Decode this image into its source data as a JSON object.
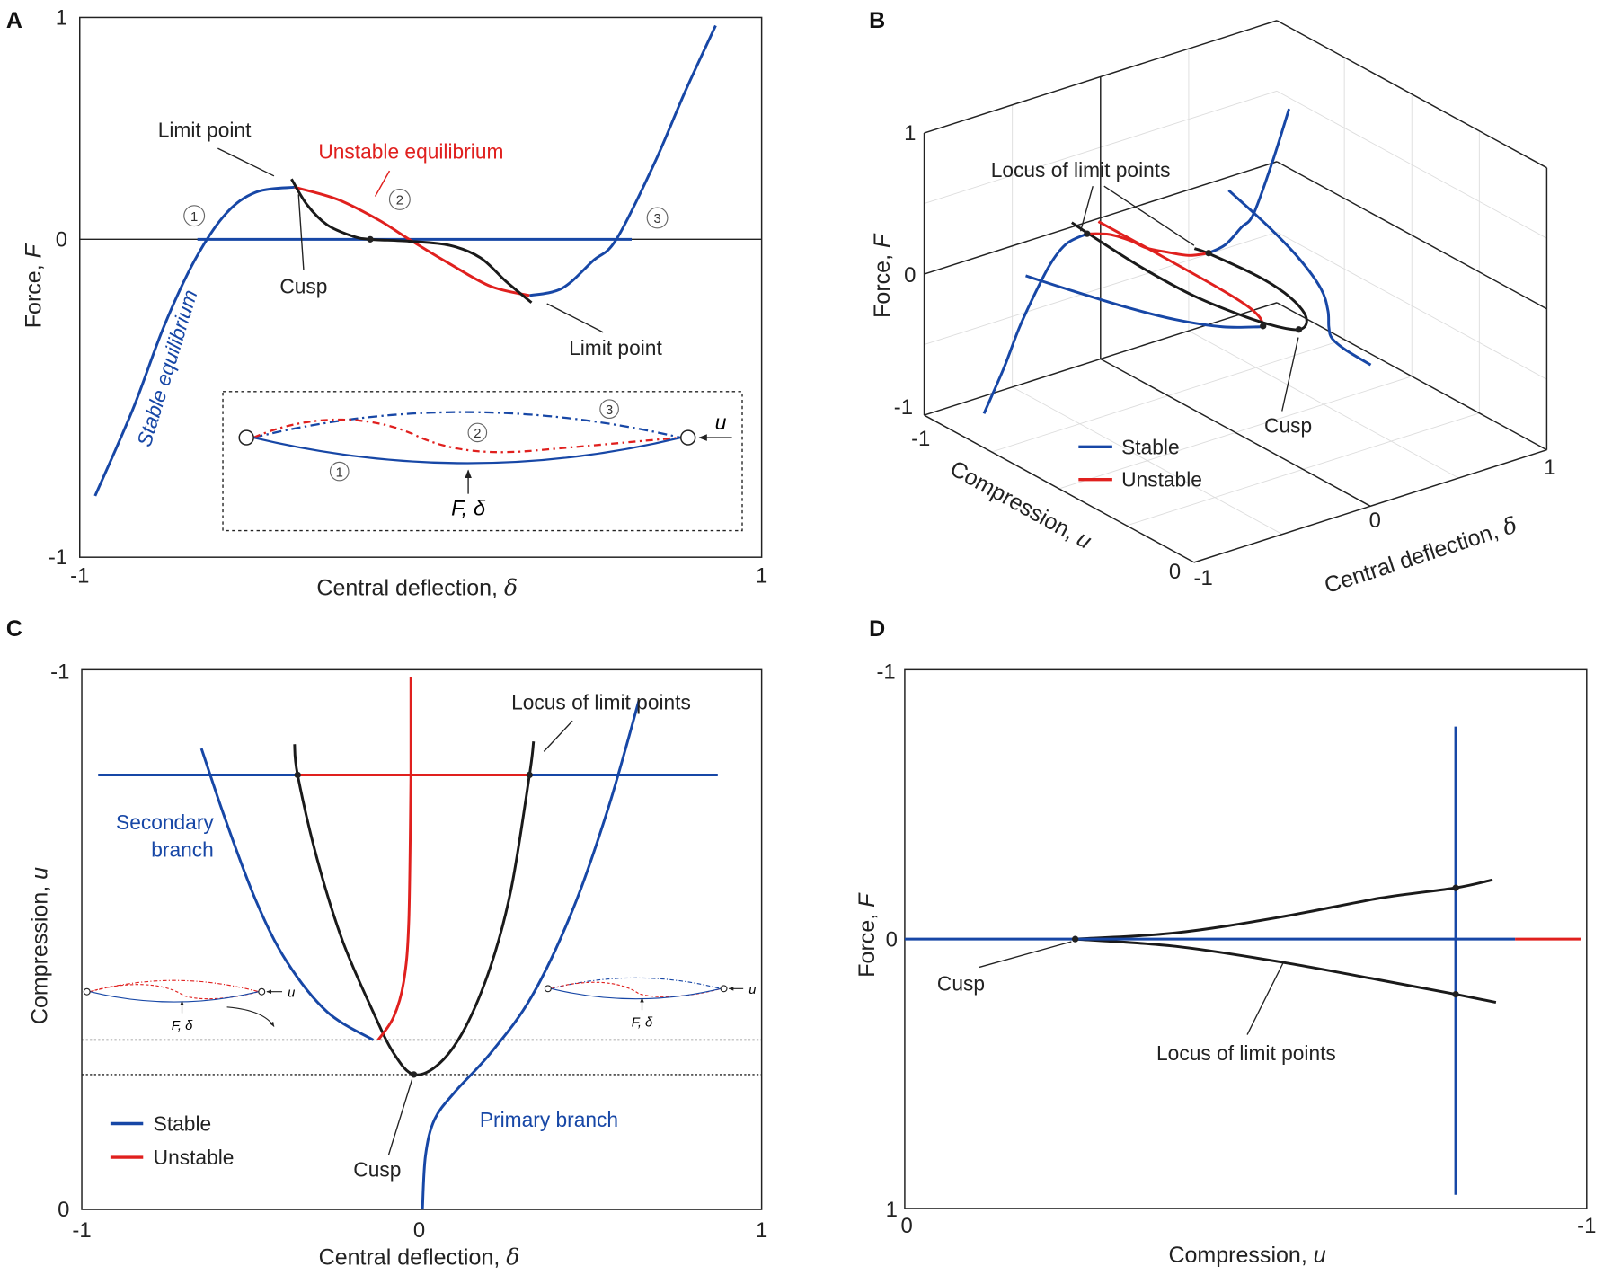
{
  "colors": {
    "stable": "#1747a6",
    "unstable": "#e0201e",
    "locus": "#1a1a1a"
  },
  "chart_data": [
    {
      "panel": "A",
      "type": "line",
      "xlabel": "Central deflection,",
      "xlabel_var": "δ",
      "ylabel": "Force,",
      "ylabel_var": "F",
      "xlim": [
        -1,
        1
      ],
      "ylim": [
        -1,
        1
      ],
      "xticks": [
        -1,
        1
      ],
      "yticks": [
        1,
        0,
        -1
      ],
      "series": [
        {
          "name": "Stable equilibrium (left)",
          "kind": "stable",
          "points": [
            [
              -0.955,
              -0.807
            ],
            [
              -0.844,
              -0.534
            ],
            [
              -0.754,
              -0.277
            ],
            [
              -0.664,
              -0.068
            ],
            [
              -0.574,
              0.111
            ],
            [
              -0.484,
              0.212
            ],
            [
              -0.37,
              0.235
            ]
          ]
        },
        {
          "name": "Unstable equilibrium",
          "kind": "unstable",
          "points": [
            [
              -0.37,
              0.235
            ],
            [
              -0.244,
              0.18
            ],
            [
              -0.124,
              0.088
            ],
            [
              -0.034,
              0
            ],
            [
              0.085,
              -0.077
            ],
            [
              0.205,
              -0.148
            ],
            [
              0.319,
              -0.177
            ]
          ]
        },
        {
          "name": "Stable equilibrium (right)",
          "kind": "stable",
          "points": [
            [
              0.319,
              -0.177
            ],
            [
              0.415,
              -0.154
            ],
            [
              0.505,
              -0.068
            ],
            [
              0.574,
              0
            ],
            [
              0.685,
              0.341
            ],
            [
              0.775,
              0.664
            ],
            [
              0.865,
              0.963
            ]
          ]
        },
        {
          "name": "Stable equilibrium (zero force)",
          "kind": "stable",
          "points": [
            [
              -0.655,
              0
            ],
            [
              0.619,
              0
            ]
          ]
        },
        {
          "name": "Locus curve",
          "kind": "locus",
          "points": [
            [
              -0.379,
              0.272
            ],
            [
              -0.334,
              0.157
            ],
            [
              -0.274,
              0.065
            ],
            [
              -0.199,
              0.014
            ],
            [
              -0.148,
              0
            ],
            [
              -0.034,
              -0.006
            ],
            [
              0.085,
              -0.019
            ],
            [
              0.175,
              -0.058
            ],
            [
              0.25,
              -0.132
            ],
            [
              0.325,
              -0.199
            ]
          ]
        }
      ],
      "points": [
        {
          "name": "cusp",
          "xy": [
            -0.148,
            0
          ]
        },
        {
          "name": "limit-point-upper",
          "xy": [
            -0.37,
            0.235
          ]
        },
        {
          "name": "limit-point-lower",
          "xy": [
            0.319,
            -0.177
          ]
        }
      ],
      "annotations": {
        "limit_point_upper": "Limit point",
        "unstable": "Unstable equilibrium",
        "cusp": "Cusp",
        "limit_point_lower": "Limit point",
        "stable": "Stable equilibrium",
        "n1": "1",
        "n2": "2",
        "n3": "3"
      },
      "inset": {
        "n1": "1",
        "n2": "2",
        "n3": "3",
        "u": "u",
        "force": "F, δ"
      }
    },
    {
      "panel": "B",
      "type": "line3d",
      "xlabel": "Central deflection,",
      "xlabel_var": "δ",
      "ylabel": "Compression,",
      "ylabel_var": "u",
      "zlabel": "Force,",
      "zlabel_var": "F",
      "xlim": [
        -1,
        1
      ],
      "ylim": [
        -1,
        0
      ],
      "zlim": [
        -1,
        1
      ],
      "xticks": [
        -1,
        0,
        1
      ],
      "yticks": [
        -1,
        0
      ],
      "zticks": [
        1,
        0,
        -1
      ],
      "legend": {
        "stable": "Stable",
        "unstable": "Unstable",
        "position": "bottom-left"
      },
      "series": [
        {
          "name": "Stable (left, u=-0.808)",
          "kind": "stable",
          "points": [
            [
              -0.955,
              -0.808,
              -0.807
            ],
            [
              -0.844,
              -0.808,
              -0.534
            ],
            [
              -0.754,
              -0.808,
              -0.277
            ],
            [
              -0.664,
              -0.808,
              -0.068
            ],
            [
              -0.574,
              -0.808,
              0.111
            ],
            [
              -0.484,
              -0.808,
              0.212
            ],
            [
              -0.37,
              -0.808,
              0.235
            ]
          ]
        },
        {
          "name": "Unstable (u=-0.808)",
          "kind": "unstable",
          "points": [
            [
              -0.37,
              -0.808,
              0.235
            ],
            [
              -0.244,
              -0.808,
              0.18
            ],
            [
              -0.124,
              -0.808,
              0.088
            ],
            [
              -0.034,
              -0.808,
              0
            ],
            [
              0.085,
              -0.808,
              -0.077
            ],
            [
              0.205,
              -0.808,
              -0.148
            ],
            [
              0.319,
              -0.808,
              -0.177
            ]
          ]
        },
        {
          "name": "Stable (right, u=-0.808)",
          "kind": "stable",
          "points": [
            [
              0.319,
              -0.808,
              -0.177
            ],
            [
              0.415,
              -0.808,
              -0.154
            ],
            [
              0.505,
              -0.808,
              -0.068
            ],
            [
              0.574,
              -0.808,
              0
            ],
            [
              0.685,
              -0.808,
              0.341
            ],
            [
              0.775,
              -0.808,
              0.664
            ]
          ]
        },
        {
          "name": "Unstable (F=0)",
          "kind": "unstable",
          "points": [
            [
              -0.032,
              -0.987,
              0
            ],
            [
              -0.032,
              -0.805,
              0
            ],
            [
              -0.038,
              -0.536,
              0
            ],
            [
              -0.053,
              -0.422,
              0
            ],
            [
              -0.083,
              -0.356,
              0
            ],
            [
              -0.128,
              -0.314,
              0
            ]
          ]
        },
        {
          "name": "Secondary branch (F=0)",
          "kind": "stable",
          "points": [
            [
              -0.648,
              -0.854,
              0
            ],
            [
              -0.579,
              -0.725,
              0
            ],
            [
              -0.489,
              -0.574,
              0
            ],
            [
              -0.398,
              -0.46,
              0
            ],
            [
              -0.278,
              -0.366,
              0
            ],
            [
              -0.143,
              -0.314,
              0
            ]
          ]
        },
        {
          "name": "Primary branch (F=0)",
          "kind": "stable",
          "points": [
            [
              0.639,
              -0.943,
              0
            ],
            [
              0.549,
              -0.744,
              0
            ],
            [
              0.444,
              -0.555,
              0
            ],
            [
              0.323,
              -0.394,
              0
            ],
            [
              0.203,
              -0.29,
              0
            ],
            [
              0.098,
              -0.218,
              0
            ],
            [
              0.038,
              -0.167,
              0
            ],
            [
              0.011,
              -0.1,
              0
            ],
            [
              0.002,
              0,
              0
            ]
          ]
        },
        {
          "name": "Locus of limit points",
          "kind": "locus",
          "points": [
            [
              -0.374,
              -0.862,
              0.26
            ],
            [
              -0.365,
              -0.805,
              0.235
            ],
            [
              -0.308,
              -0.65,
              0.14
            ],
            [
              -0.233,
              -0.498,
              0.06
            ],
            [
              -0.143,
              -0.366,
              0.015
            ],
            [
              -0.083,
              -0.29,
              0.003
            ],
            [
              -0.023,
              -0.25,
              0
            ],
            [
              0.053,
              -0.271,
              -0.002
            ],
            [
              0.128,
              -0.337,
              -0.01
            ],
            [
              0.203,
              -0.451,
              -0.04
            ],
            [
              0.263,
              -0.593,
              -0.09
            ],
            [
              0.317,
              -0.805,
              -0.177
            ],
            [
              0.329,
              -0.867,
              -0.21
            ]
          ]
        }
      ],
      "points": [
        {
          "name": "limit-point-upper",
          "xyz": [
            -0.37,
            -0.808,
            0.235
          ]
        },
        {
          "name": "limit-point-lower",
          "xyz": [
            0.319,
            -0.808,
            -0.177
          ]
        },
        {
          "name": "cusp",
          "xyz": [
            -0.023,
            -0.25,
            0
          ]
        },
        {
          "name": "branch-junction",
          "xyz": [
            -0.128,
            -0.314,
            0
          ]
        }
      ],
      "annotations": {
        "locus": "Locus of limit points",
        "cusp": "Cusp"
      }
    },
    {
      "panel": "C",
      "type": "line",
      "xlabel": "Central deflection,",
      "xlabel_var": "δ",
      "ylabel": "Compression,",
      "ylabel_var": "u",
      "xlim": [
        -1,
        1
      ],
      "ylim": [
        0,
        -1
      ],
      "xticks": [
        -1,
        0,
        1
      ],
      "yticks": [
        -1,
        0
      ],
      "legend": {
        "stable": "Stable",
        "unstable": "Unstable",
        "position": "bottom-left"
      },
      "series": [
        {
          "name": "Stable (u=-0.805, left)",
          "kind": "stable",
          "points": [
            [
              -0.952,
              -0.805
            ],
            [
              -0.365,
              -0.805
            ]
          ]
        },
        {
          "name": "Unstable (u=-0.805)",
          "kind": "unstable",
          "points": [
            [
              -0.365,
              -0.805
            ],
            [
              0.317,
              -0.805
            ]
          ]
        },
        {
          "name": "Stable (u=-0.805, right)",
          "kind": "stable",
          "points": [
            [
              0.317,
              -0.805
            ],
            [
              0.871,
              -0.805
            ]
          ]
        },
        {
          "name": "Unstable branch",
          "kind": "unstable",
          "points": [
            [
              -0.032,
              -0.987
            ],
            [
              -0.032,
              -0.805
            ],
            [
              -0.038,
              -0.536
            ],
            [
              -0.053,
              -0.422
            ],
            [
              -0.083,
              -0.356
            ],
            [
              -0.128,
              -0.314
            ]
          ]
        },
        {
          "name": "Secondary branch",
          "kind": "stable",
          "points": [
            [
              -0.648,
              -0.854
            ],
            [
              -0.579,
              -0.725
            ],
            [
              -0.489,
              -0.574
            ],
            [
              -0.398,
              -0.46
            ],
            [
              -0.278,
              -0.366
            ],
            [
              -0.143,
              -0.314
            ]
          ]
        },
        {
          "name": "Primary branch",
          "kind": "stable",
          "points": [
            [
              0.002,
              0
            ],
            [
              0.011,
              -0.1
            ],
            [
              0.038,
              -0.167
            ],
            [
              0.098,
              -0.218
            ],
            [
              0.203,
              -0.29
            ],
            [
              0.323,
              -0.394
            ],
            [
              0.444,
              -0.555
            ],
            [
              0.549,
              -0.744
            ],
            [
              0.639,
              -0.943
            ]
          ]
        },
        {
          "name": "Locus of limit points",
          "kind": "locus",
          "points": [
            [
              -0.374,
              -0.862
            ],
            [
              -0.365,
              -0.805
            ],
            [
              -0.308,
              -0.65
            ],
            [
              -0.233,
              -0.498
            ],
            [
              -0.143,
              -0.366
            ],
            [
              -0.083,
              -0.29
            ],
            [
              -0.023,
              -0.25
            ],
            [
              0.053,
              -0.271
            ],
            [
              0.128,
              -0.337
            ],
            [
              0.203,
              -0.451
            ],
            [
              0.263,
              -0.593
            ],
            [
              0.317,
              -0.805
            ],
            [
              0.329,
              -0.867
            ]
          ]
        }
      ],
      "reference_lines_u": [
        -0.314,
        -0.25
      ],
      "points": [
        {
          "name": "cusp",
          "xy": [
            -0.023,
            -0.25
          ]
        },
        {
          "name": "limit-point-left",
          "xy": [
            -0.365,
            -0.805
          ]
        },
        {
          "name": "limit-point-right",
          "xy": [
            0.317,
            -0.805
          ]
        }
      ],
      "annotations": {
        "locus": "Locus of limit points",
        "secondary_1": "Secondary",
        "secondary_2": "branch",
        "primary": "Primary branch",
        "cusp": "Cusp"
      },
      "insets": [
        {
          "u": "u",
          "force": "F, δ"
        },
        {
          "u": "u",
          "force": "F, δ"
        }
      ]
    },
    {
      "panel": "D",
      "type": "line",
      "xlabel": "Compression,",
      "xlabel_var": "u",
      "ylabel": "Force,",
      "ylabel_var": "F",
      "xlim": [
        0,
        -1
      ],
      "ylim": [
        1,
        -1
      ],
      "xticks": [
        0,
        -1
      ],
      "yticks": [
        -1,
        0,
        1
      ],
      "series": [
        {
          "name": "Stable (F=0)",
          "kind": "stable",
          "points": [
            [
              0,
              0
            ],
            [
              -0.895,
              0
            ]
          ]
        },
        {
          "name": "Unstable (F=0)",
          "kind": "unstable",
          "points": [
            [
              -0.895,
              0
            ],
            [
              -0.991,
              0
            ]
          ]
        },
        {
          "name": "Stable (u=-0.808)",
          "kind": "stable",
          "points": [
            [
              -0.808,
              -0.789
            ],
            [
              -0.808,
              0.949
            ]
          ]
        },
        {
          "name": "Locus of limit points (upper)",
          "kind": "locus",
          "points": [
            [
              -0.25,
              0
            ],
            [
              -0.397,
              -0.023
            ],
            [
              -0.547,
              -0.08
            ],
            [
              -0.697,
              -0.152
            ],
            [
              -0.808,
              -0.19
            ],
            [
              -0.862,
              -0.22
            ]
          ]
        },
        {
          "name": "Locus of limit points (lower)",
          "kind": "locus",
          "points": [
            [
              -0.25,
              0
            ],
            [
              -0.397,
              0.027
            ],
            [
              -0.547,
              0.083
            ],
            [
              -0.697,
              0.152
            ],
            [
              -0.808,
              0.205
            ],
            [
              -0.867,
              0.235
            ]
          ]
        }
      ],
      "points": [
        {
          "name": "cusp",
          "xy": [
            -0.25,
            0
          ]
        },
        {
          "name": "limit-point-upper",
          "xy": [
            -0.808,
            -0.19
          ]
        },
        {
          "name": "limit-point-lower",
          "xy": [
            -0.808,
            0.205
          ]
        }
      ],
      "annotations": {
        "cusp": "Cusp",
        "locus": "Locus of limit points"
      }
    }
  ]
}
